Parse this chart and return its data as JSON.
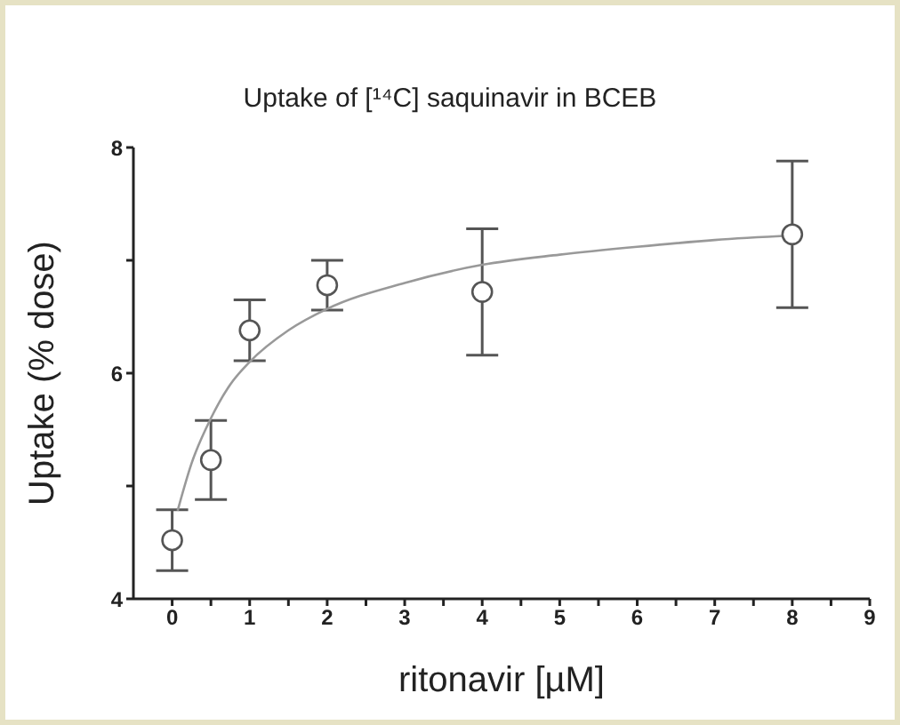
{
  "chart_data": {
    "type": "scatter",
    "title": "Uptake of [¹⁴C] saquinavir in BCEB",
    "xlabel": "ritonavir [µM]",
    "ylabel": "Uptake (% dose)",
    "xlim": [
      -0.5,
      9
    ],
    "xticks": [
      0,
      {
        "value": 0.5,
        "label": null
      },
      1,
      {
        "value": 1.5,
        "label": null
      },
      2,
      {
        "value": 2.5,
        "label": null
      },
      3,
      {
        "value": 3.5,
        "label": null
      },
      4,
      {
        "value": 4.5,
        "label": null
      },
      5,
      {
        "value": 5.5,
        "label": null
      },
      6,
      {
        "value": 6.5,
        "label": null
      },
      7,
      {
        "value": 7.5,
        "label": null
      },
      8,
      {
        "value": 8.5,
        "label": null
      },
      9
    ],
    "ylim": [
      4,
      8
    ],
    "yticks": [
      4,
      {
        "value": 5,
        "label": null
      },
      6,
      {
        "value": 7,
        "label": null
      },
      8
    ],
    "grid": false,
    "series": [
      {
        "marker": "circle",
        "color": "#555555",
        "x": [
          0,
          0.5,
          1,
          2,
          4,
          8
        ],
        "values": [
          4.52,
          5.23,
          6.38,
          6.78,
          6.72,
          7.23
        ],
        "errors": [
          0.27,
          0.35,
          0.27,
          0.22,
          0.56,
          0.65
        ]
      },
      {
        "type": "line",
        "color": "#999999",
        "x": [
          0.07,
          0.25,
          0.5,
          0.75,
          1,
          1.5,
          2,
          3,
          4,
          5,
          6,
          7,
          8
        ],
        "values": [
          4.78,
          5.2,
          5.6,
          5.9,
          6.1,
          6.38,
          6.57,
          6.8,
          6.96,
          7.05,
          7.12,
          7.18,
          7.22
        ]
      }
    ]
  }
}
